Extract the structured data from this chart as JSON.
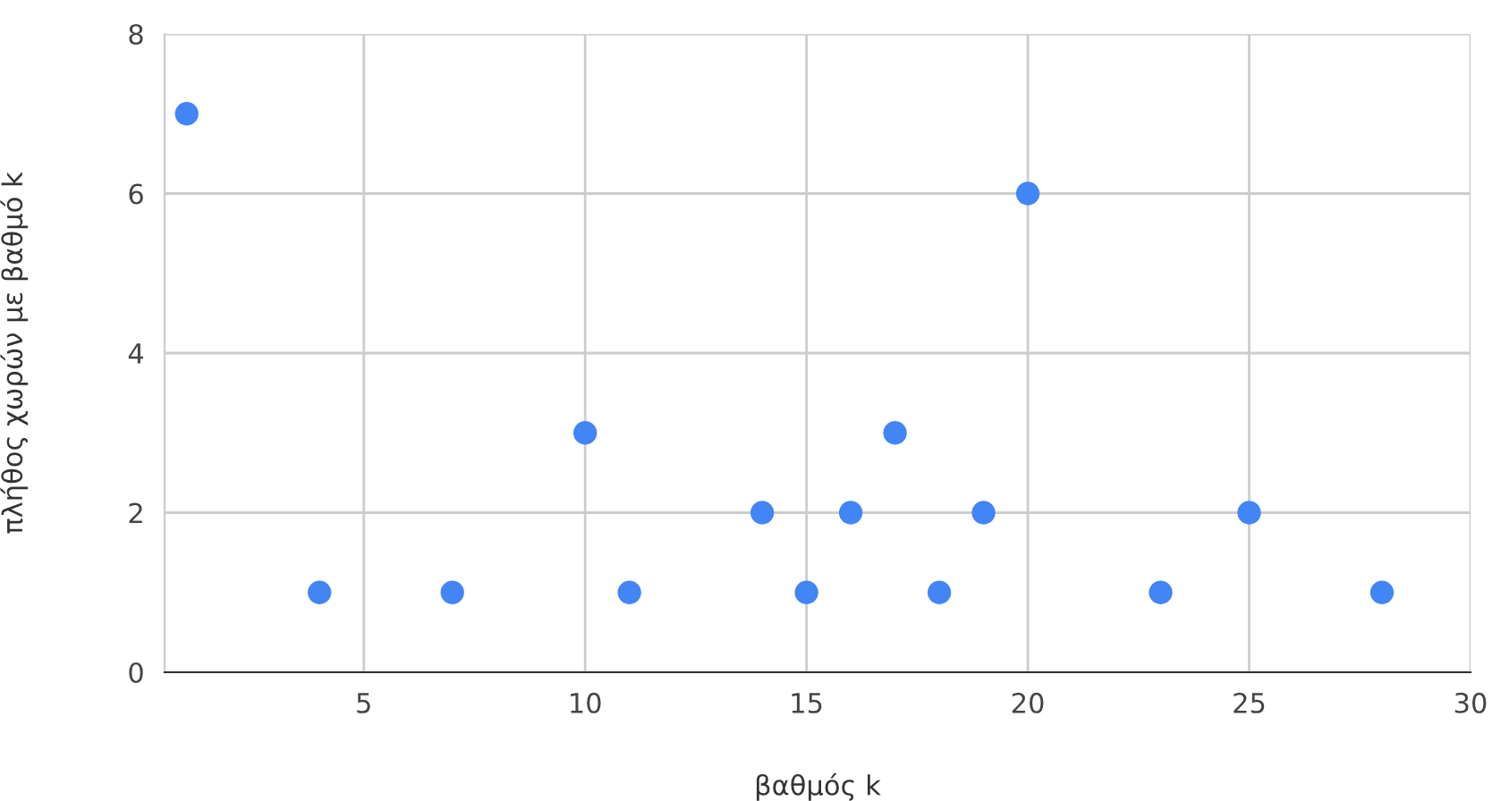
{
  "chart_data": {
    "type": "scatter",
    "xlabel": "βαθμός k",
    "ylabel": "πλήθος χωρών με βαθμό k",
    "x": [
      1,
      4,
      7,
      10,
      11,
      14,
      15,
      16,
      17,
      18,
      19,
      20,
      23,
      25,
      28
    ],
    "series": [
      {
        "color": "#4285f4",
        "values": [
          7,
          1,
          1,
          3,
          1,
          2,
          1,
          2,
          3,
          1,
          2,
          6,
          1,
          2,
          1
        ]
      }
    ],
    "xlim": [
      0.5,
      30
    ],
    "xticks": [
      5,
      10,
      15,
      20,
      25,
      30
    ],
    "ylim": [
      0,
      8
    ],
    "yticks": [
      0,
      2,
      4,
      6,
      8
    ],
    "grid": true,
    "marker": "circle"
  }
}
